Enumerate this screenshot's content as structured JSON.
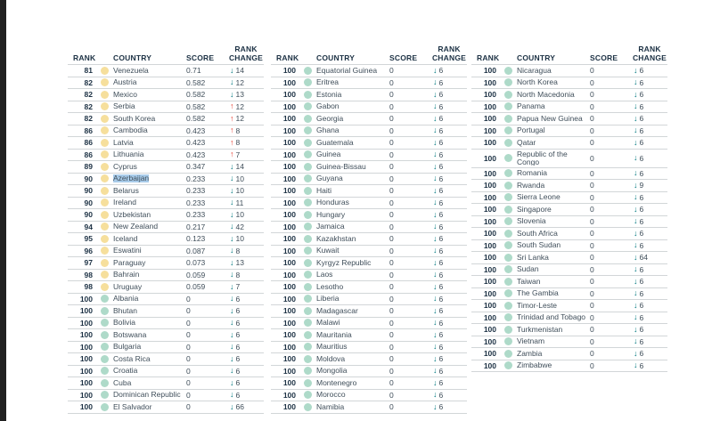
{
  "headers": {
    "rank": "RANK",
    "country": "COUNTRY",
    "score": "SCORE",
    "change_line1": "RANK",
    "change_line2": "CHANGE"
  },
  "icons": {
    "down_arrow": "↓",
    "up_arrow": "↑",
    "country_status_dot": "●"
  },
  "colors": {
    "header_text": "#1c3144",
    "country_text": "#3f4e5a",
    "divider": "#d2d6d8",
    "down_arrow": "#00787f",
    "up_arrow": "#e63c2f",
    "dot_yellow": "#f6df9c",
    "dot_teal": "#aedac9",
    "highlight": "#a8cbe9",
    "left_bar": "#212121"
  },
  "tables": [
    {
      "rows": [
        {
          "rank": "81",
          "dot": "yellow",
          "country": "Venezuela",
          "score": "0.71",
          "dir": "down",
          "change": "14"
        },
        {
          "rank": "82",
          "dot": "yellow",
          "country": "Austria",
          "score": "0.582",
          "dir": "down",
          "change": "12"
        },
        {
          "rank": "82",
          "dot": "yellow",
          "country": "Mexico",
          "score": "0.582",
          "dir": "down",
          "change": "13"
        },
        {
          "rank": "82",
          "dot": "yellow",
          "country": "Serbia",
          "score": "0.582",
          "dir": "up",
          "change": "12"
        },
        {
          "rank": "82",
          "dot": "yellow",
          "country": "South Korea",
          "score": "0.582",
          "dir": "up",
          "change": "12"
        },
        {
          "rank": "86",
          "dot": "yellow",
          "country": "Cambodia",
          "score": "0.423",
          "dir": "up",
          "change": "8"
        },
        {
          "rank": "86",
          "dot": "yellow",
          "country": "Latvia",
          "score": "0.423",
          "dir": "up",
          "change": "8"
        },
        {
          "rank": "86",
          "dot": "yellow",
          "country": "Lithuania",
          "score": "0.423",
          "dir": "up",
          "change": "7"
        },
        {
          "rank": "89",
          "dot": "yellow",
          "country": "Cyprus",
          "score": "0.347",
          "dir": "down",
          "change": "14"
        },
        {
          "rank": "90",
          "dot": "yellow",
          "country": "Azerbaijan",
          "score": "0.233",
          "dir": "down",
          "change": "10",
          "highlight": true
        },
        {
          "rank": "90",
          "dot": "yellow",
          "country": "Belarus",
          "score": "0.233",
          "dir": "down",
          "change": "10"
        },
        {
          "rank": "90",
          "dot": "yellow",
          "country": "Ireland",
          "score": "0.233",
          "dir": "down",
          "change": "11"
        },
        {
          "rank": "90",
          "dot": "yellow",
          "country": "Uzbekistan",
          "score": "0.233",
          "dir": "down",
          "change": "10"
        },
        {
          "rank": "94",
          "dot": "yellow",
          "country": "New Zealand",
          "score": "0.217",
          "dir": "down",
          "change": "42"
        },
        {
          "rank": "95",
          "dot": "yellow",
          "country": "Iceland",
          "score": "0.123",
          "dir": "down",
          "change": "10"
        },
        {
          "rank": "96",
          "dot": "yellow",
          "country": "Eswatini",
          "score": "0.087",
          "dir": "down",
          "change": "8"
        },
        {
          "rank": "97",
          "dot": "yellow",
          "country": "Paraguay",
          "score": "0.073",
          "dir": "down",
          "change": "13"
        },
        {
          "rank": "98",
          "dot": "yellow",
          "country": "Bahrain",
          "score": "0.059",
          "dir": "down",
          "change": "8"
        },
        {
          "rank": "98",
          "dot": "yellow",
          "country": "Uruguay",
          "score": "0.059",
          "dir": "down",
          "change": "7"
        },
        {
          "rank": "100",
          "dot": "teal",
          "country": "Albania",
          "score": "0",
          "dir": "down",
          "change": "6"
        },
        {
          "rank": "100",
          "dot": "teal",
          "country": "Bhutan",
          "score": "0",
          "dir": "down",
          "change": "6"
        },
        {
          "rank": "100",
          "dot": "teal",
          "country": "Bolivia",
          "score": "0",
          "dir": "down",
          "change": "6"
        },
        {
          "rank": "100",
          "dot": "teal",
          "country": "Botswana",
          "score": "0",
          "dir": "down",
          "change": "6"
        },
        {
          "rank": "100",
          "dot": "teal",
          "country": "Bulgaria",
          "score": "0",
          "dir": "down",
          "change": "6"
        },
        {
          "rank": "100",
          "dot": "teal",
          "country": "Costa Rica",
          "score": "0",
          "dir": "down",
          "change": "6"
        },
        {
          "rank": "100",
          "dot": "teal",
          "country": "Croatia",
          "score": "0",
          "dir": "down",
          "change": "6"
        },
        {
          "rank": "100",
          "dot": "teal",
          "country": "Cuba",
          "score": "0",
          "dir": "down",
          "change": "6"
        },
        {
          "rank": "100",
          "dot": "teal",
          "country": "Dominican Republic",
          "score": "0",
          "dir": "down",
          "change": "6"
        },
        {
          "rank": "100",
          "dot": "teal",
          "country": "El Salvador",
          "score": "0",
          "dir": "down",
          "change": "66"
        }
      ]
    },
    {
      "rows": [
        {
          "rank": "100",
          "dot": "teal",
          "country": "Equatorial Guinea",
          "score": "0",
          "dir": "down",
          "change": "6"
        },
        {
          "rank": "100",
          "dot": "teal",
          "country": "Eritrea",
          "score": "0",
          "dir": "down",
          "change": "6"
        },
        {
          "rank": "100",
          "dot": "teal",
          "country": "Estonia",
          "score": "0",
          "dir": "down",
          "change": "6"
        },
        {
          "rank": "100",
          "dot": "teal",
          "country": "Gabon",
          "score": "0",
          "dir": "down",
          "change": "6"
        },
        {
          "rank": "100",
          "dot": "teal",
          "country": "Georgia",
          "score": "0",
          "dir": "down",
          "change": "6"
        },
        {
          "rank": "100",
          "dot": "teal",
          "country": "Ghana",
          "score": "0",
          "dir": "down",
          "change": "6"
        },
        {
          "rank": "100",
          "dot": "teal",
          "country": "Guatemala",
          "score": "0",
          "dir": "down",
          "change": "6"
        },
        {
          "rank": "100",
          "dot": "teal",
          "country": "Guinea",
          "score": "0",
          "dir": "down",
          "change": "6"
        },
        {
          "rank": "100",
          "dot": "teal",
          "country": "Guinea-Bissau",
          "score": "0",
          "dir": "down",
          "change": "6"
        },
        {
          "rank": "100",
          "dot": "teal",
          "country": "Guyana",
          "score": "0",
          "dir": "down",
          "change": "6"
        },
        {
          "rank": "100",
          "dot": "teal",
          "country": "Haiti",
          "score": "0",
          "dir": "down",
          "change": "6"
        },
        {
          "rank": "100",
          "dot": "teal",
          "country": "Honduras",
          "score": "0",
          "dir": "down",
          "change": "6"
        },
        {
          "rank": "100",
          "dot": "teal",
          "country": "Hungary",
          "score": "0",
          "dir": "down",
          "change": "6"
        },
        {
          "rank": "100",
          "dot": "teal",
          "country": "Jamaica",
          "score": "0",
          "dir": "down",
          "change": "6"
        },
        {
          "rank": "100",
          "dot": "teal",
          "country": "Kazakhstan",
          "score": "0",
          "dir": "down",
          "change": "6"
        },
        {
          "rank": "100",
          "dot": "teal",
          "country": "Kuwait",
          "score": "0",
          "dir": "down",
          "change": "6"
        },
        {
          "rank": "100",
          "dot": "teal",
          "country": "Kyrgyz Republic",
          "score": "0",
          "dir": "down",
          "change": "6"
        },
        {
          "rank": "100",
          "dot": "teal",
          "country": "Laos",
          "score": "0",
          "dir": "down",
          "change": "6"
        },
        {
          "rank": "100",
          "dot": "teal",
          "country": "Lesotho",
          "score": "0",
          "dir": "down",
          "change": "6"
        },
        {
          "rank": "100",
          "dot": "teal",
          "country": "Liberia",
          "score": "0",
          "dir": "down",
          "change": "6"
        },
        {
          "rank": "100",
          "dot": "teal",
          "country": "Madagascar",
          "score": "0",
          "dir": "down",
          "change": "6"
        },
        {
          "rank": "100",
          "dot": "teal",
          "country": "Malawi",
          "score": "0",
          "dir": "down",
          "change": "6"
        },
        {
          "rank": "100",
          "dot": "teal",
          "country": "Mauritania",
          "score": "0",
          "dir": "down",
          "change": "6"
        },
        {
          "rank": "100",
          "dot": "teal",
          "country": "Mauritius",
          "score": "0",
          "dir": "down",
          "change": "6"
        },
        {
          "rank": "100",
          "dot": "teal",
          "country": "Moldova",
          "score": "0",
          "dir": "down",
          "change": "6"
        },
        {
          "rank": "100",
          "dot": "teal",
          "country": "Mongolia",
          "score": "0",
          "dir": "down",
          "change": "6"
        },
        {
          "rank": "100",
          "dot": "teal",
          "country": "Montenegro",
          "score": "0",
          "dir": "down",
          "change": "6"
        },
        {
          "rank": "100",
          "dot": "teal",
          "country": "Morocco",
          "score": "0",
          "dir": "down",
          "change": "6"
        },
        {
          "rank": "100",
          "dot": "teal",
          "country": "Namibia",
          "score": "0",
          "dir": "down",
          "change": "6"
        }
      ]
    },
    {
      "rows": [
        {
          "rank": "100",
          "dot": "teal",
          "country": "Nicaragua",
          "score": "0",
          "dir": "down",
          "change": "6"
        },
        {
          "rank": "100",
          "dot": "teal",
          "country": "North Korea",
          "score": "0",
          "dir": "down",
          "change": "6"
        },
        {
          "rank": "100",
          "dot": "teal",
          "country": "North Macedonia",
          "score": "0",
          "dir": "down",
          "change": "6"
        },
        {
          "rank": "100",
          "dot": "teal",
          "country": "Panama",
          "score": "0",
          "dir": "down",
          "change": "6"
        },
        {
          "rank": "100",
          "dot": "teal",
          "country": "Papua New Guinea",
          "score": "0",
          "dir": "down",
          "change": "6"
        },
        {
          "rank": "100",
          "dot": "teal",
          "country": "Portugal",
          "score": "0",
          "dir": "down",
          "change": "6"
        },
        {
          "rank": "100",
          "dot": "teal",
          "country": "Qatar",
          "score": "0",
          "dir": "down",
          "change": "6"
        },
        {
          "rank": "100",
          "dot": "teal",
          "country": "Republic of the Congo",
          "score": "0",
          "dir": "down",
          "change": "6",
          "wrap": true
        },
        {
          "rank": "100",
          "dot": "teal",
          "country": "Romania",
          "score": "0",
          "dir": "down",
          "change": "6"
        },
        {
          "rank": "100",
          "dot": "teal",
          "country": "Rwanda",
          "score": "0",
          "dir": "down",
          "change": "9"
        },
        {
          "rank": "100",
          "dot": "teal",
          "country": "Sierra Leone",
          "score": "0",
          "dir": "down",
          "change": "6"
        },
        {
          "rank": "100",
          "dot": "teal",
          "country": "Singapore",
          "score": "0",
          "dir": "down",
          "change": "6"
        },
        {
          "rank": "100",
          "dot": "teal",
          "country": "Slovenia",
          "score": "0",
          "dir": "down",
          "change": "6"
        },
        {
          "rank": "100",
          "dot": "teal",
          "country": "South Africa",
          "score": "0",
          "dir": "down",
          "change": "6"
        },
        {
          "rank": "100",
          "dot": "teal",
          "country": "South Sudan",
          "score": "0",
          "dir": "down",
          "change": "6"
        },
        {
          "rank": "100",
          "dot": "teal",
          "country": "Sri Lanka",
          "score": "0",
          "dir": "down",
          "change": "64"
        },
        {
          "rank": "100",
          "dot": "teal",
          "country": "Sudan",
          "score": "0",
          "dir": "down",
          "change": "6"
        },
        {
          "rank": "100",
          "dot": "teal",
          "country": "Taiwan",
          "score": "0",
          "dir": "down",
          "change": "6"
        },
        {
          "rank": "100",
          "dot": "teal",
          "country": "The Gambia",
          "score": "0",
          "dir": "down",
          "change": "6"
        },
        {
          "rank": "100",
          "dot": "teal",
          "country": "Timor-Leste",
          "score": "0",
          "dir": "down",
          "change": "6"
        },
        {
          "rank": "100",
          "dot": "teal",
          "country": "Trinidad and Tobago",
          "score": "0",
          "dir": "down",
          "change": "6"
        },
        {
          "rank": "100",
          "dot": "teal",
          "country": "Turkmenistan",
          "score": "0",
          "dir": "down",
          "change": "6"
        },
        {
          "rank": "100",
          "dot": "teal",
          "country": "Vietnam",
          "score": "0",
          "dir": "down",
          "change": "6"
        },
        {
          "rank": "100",
          "dot": "teal",
          "country": "Zambia",
          "score": "0",
          "dir": "down",
          "change": "6"
        },
        {
          "rank": "100",
          "dot": "teal",
          "country": "Zimbabwe",
          "score": "0",
          "dir": "down",
          "change": "6"
        }
      ]
    }
  ]
}
